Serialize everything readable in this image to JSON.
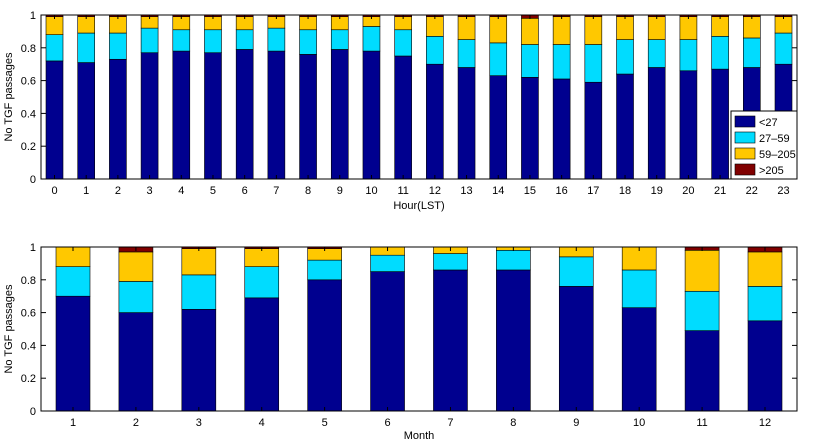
{
  "colors": {
    "lt27": "#00008f",
    "c27_59": "#00dcff",
    "c59_205": "#ffc800",
    "gt205": "#800000"
  },
  "chart_data": [
    {
      "type": "bar",
      "stacked": true,
      "xlabel": "Hour(LST)",
      "ylabel": "No TGF passages",
      "ylim": [
        0,
        1
      ],
      "yticks": [
        "0",
        "0.2",
        "0.4",
        "0.6",
        "0.8",
        "1"
      ],
      "legend_position": "right",
      "categories": [
        "0",
        "1",
        "2",
        "3",
        "4",
        "5",
        "6",
        "7",
        "8",
        "9",
        "10",
        "11",
        "12",
        "13",
        "14",
        "15",
        "16",
        "17",
        "18",
        "19",
        "20",
        "21",
        "22",
        "23"
      ],
      "series": [
        {
          "name": "<27",
          "color_key": "lt27",
          "values": [
            0.72,
            0.71,
            0.73,
            0.77,
            0.78,
            0.77,
            0.79,
            0.78,
            0.76,
            0.79,
            0.78,
            0.75,
            0.7,
            0.68,
            0.63,
            0.62,
            0.61,
            0.59,
            0.64,
            0.68,
            0.66,
            0.67,
            0.68,
            0.7
          ]
        },
        {
          "name": "27–59",
          "color_key": "c27_59",
          "values": [
            0.16,
            0.18,
            0.16,
            0.15,
            0.13,
            0.14,
            0.12,
            0.14,
            0.15,
            0.12,
            0.15,
            0.16,
            0.17,
            0.17,
            0.2,
            0.2,
            0.21,
            0.23,
            0.21,
            0.17,
            0.19,
            0.2,
            0.18,
            0.19
          ]
        },
        {
          "name": "59–205",
          "color_key": "c59_205",
          "values": [
            0.11,
            0.1,
            0.1,
            0.07,
            0.08,
            0.08,
            0.08,
            0.07,
            0.08,
            0.08,
            0.06,
            0.08,
            0.12,
            0.14,
            0.16,
            0.16,
            0.17,
            0.17,
            0.14,
            0.14,
            0.14,
            0.12,
            0.13,
            0.1
          ]
        },
        {
          "name": ">205",
          "color_key": "gt205",
          "values": [
            0.01,
            0.01,
            0.01,
            0.01,
            0.01,
            0.01,
            0.01,
            0.01,
            0.01,
            0.01,
            0.01,
            0.01,
            0.01,
            0.01,
            0.01,
            0.02,
            0.01,
            0.01,
            0.01,
            0.01,
            0.01,
            0.01,
            0.01,
            0.01
          ]
        }
      ]
    },
    {
      "type": "bar",
      "stacked": true,
      "xlabel": "Month",
      "ylabel": "No TGF passages",
      "ylim": [
        0,
        1
      ],
      "yticks": [
        "0",
        "0.2",
        "0.4",
        "0.6",
        "0.8",
        "1"
      ],
      "categories": [
        "1",
        "2",
        "3",
        "4",
        "5",
        "6",
        "7",
        "8",
        "9",
        "10",
        "11",
        "12"
      ],
      "series": [
        {
          "name": "<27",
          "color_key": "lt27",
          "values": [
            0.7,
            0.6,
            0.62,
            0.69,
            0.8,
            0.85,
            0.86,
            0.86,
            0.76,
            0.63,
            0.49,
            0.55
          ]
        },
        {
          "name": "27–59",
          "color_key": "c27_59",
          "values": [
            0.18,
            0.19,
            0.21,
            0.19,
            0.12,
            0.1,
            0.1,
            0.12,
            0.18,
            0.23,
            0.24,
            0.21
          ]
        },
        {
          "name": "59–205",
          "color_key": "c59_205",
          "values": [
            0.12,
            0.18,
            0.16,
            0.11,
            0.07,
            0.05,
            0.04,
            0.02,
            0.06,
            0.14,
            0.25,
            0.21
          ]
        },
        {
          "name": ">205",
          "color_key": "gt205",
          "values": [
            0.0,
            0.03,
            0.01,
            0.01,
            0.01,
            0.0,
            0.0,
            0.0,
            0.0,
            0.0,
            0.02,
            0.03
          ]
        }
      ]
    }
  ]
}
